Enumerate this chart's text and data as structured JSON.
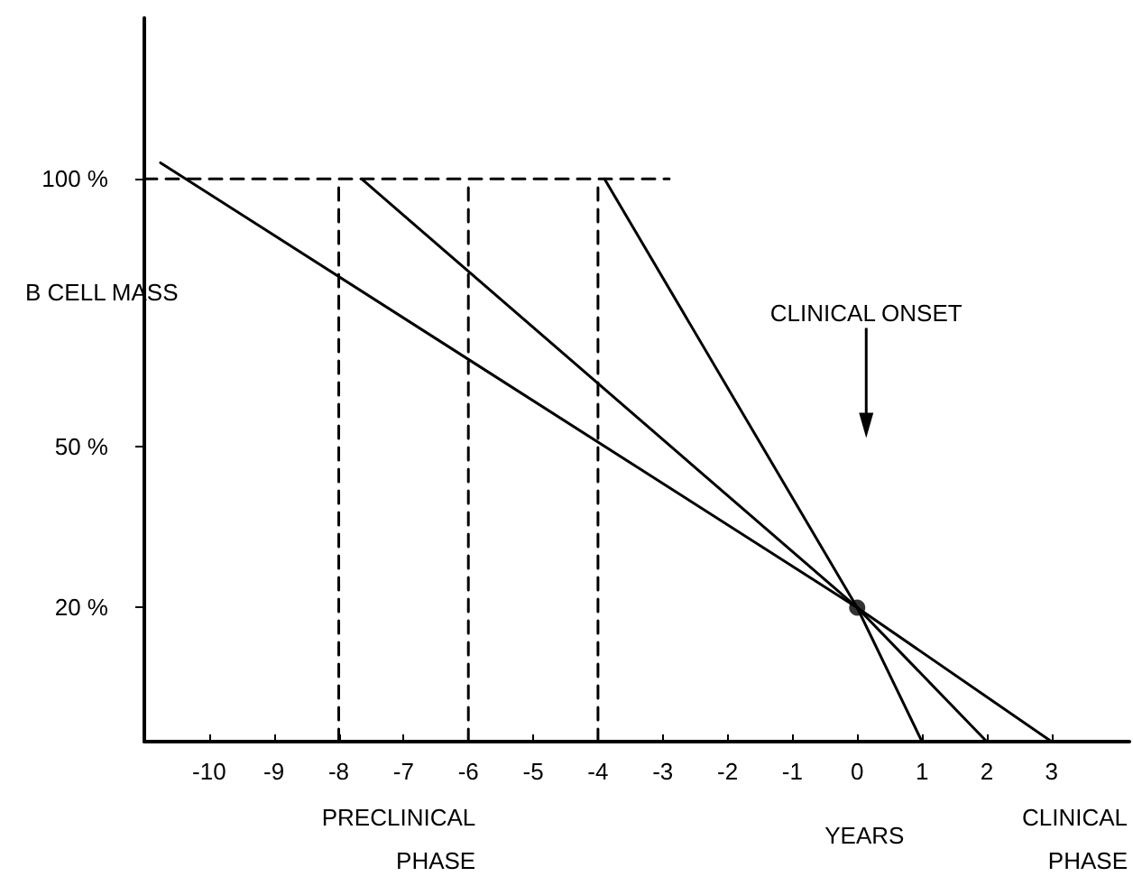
{
  "chart_data": {
    "type": "line",
    "xlabel": "YEARS",
    "ylabel": "B CELL MASS",
    "annotations": [
      "CLINICAL ONSET",
      "PRECLINICAL PHASE",
      "CLINICAL PHASE"
    ],
    "series": [
      {
        "color": "#000000",
        "x": [
          -3.9,
          0,
          1
        ],
        "values": [
          100,
          20,
          -5
        ],
        "line_style": "solid",
        "marker": "none"
      },
      {
        "color": "#000000",
        "x": [
          -7.65,
          0,
          2
        ],
        "values": [
          100,
          20,
          -5
        ],
        "line_style": "solid",
        "marker": "none"
      },
      {
        "color": "#000000",
        "x": [
          -10.75,
          0,
          3
        ],
        "values": [
          103,
          20,
          -5
        ],
        "line_style": "solid",
        "marker": "none"
      },
      {
        "color": "#000000",
        "x": [
          -11,
          -2.9
        ],
        "values": [
          100,
          100
        ],
        "line_style": "dashed",
        "marker": "none"
      },
      {
        "color": "#000000",
        "x": [
          -8,
          -8
        ],
        "values": [
          -5,
          100
        ],
        "line_style": "dashed",
        "marker": "none"
      },
      {
        "color": "#000000",
        "x": [
          -6,
          -6
        ],
        "values": [
          -5,
          100
        ],
        "line_style": "dashed",
        "marker": "none"
      },
      {
        "color": "#000000",
        "x": [
          -4,
          -4
        ],
        "values": [
          -5,
          100
        ],
        "line_style": "dashed",
        "marker": "none"
      },
      {
        "type": "scatter",
        "color": "#000000",
        "x": [
          0
        ],
        "values": [
          20
        ],
        "marker": "circle"
      }
    ],
    "xlim": [
      -11,
      4.2
    ],
    "xticks": [
      -10,
      -9,
      -8,
      -7,
      -6,
      -5,
      -4,
      -3,
      -2,
      -1,
      0,
      1,
      2,
      3
    ],
    "ylim": [
      -5,
      130
    ],
    "yticks": [
      {
        "value": 20,
        "label": "20 %"
      },
      {
        "value": 50,
        "label": "50 %"
      },
      {
        "value": 100,
        "label": "100 %"
      }
    ],
    "grid": false
  }
}
